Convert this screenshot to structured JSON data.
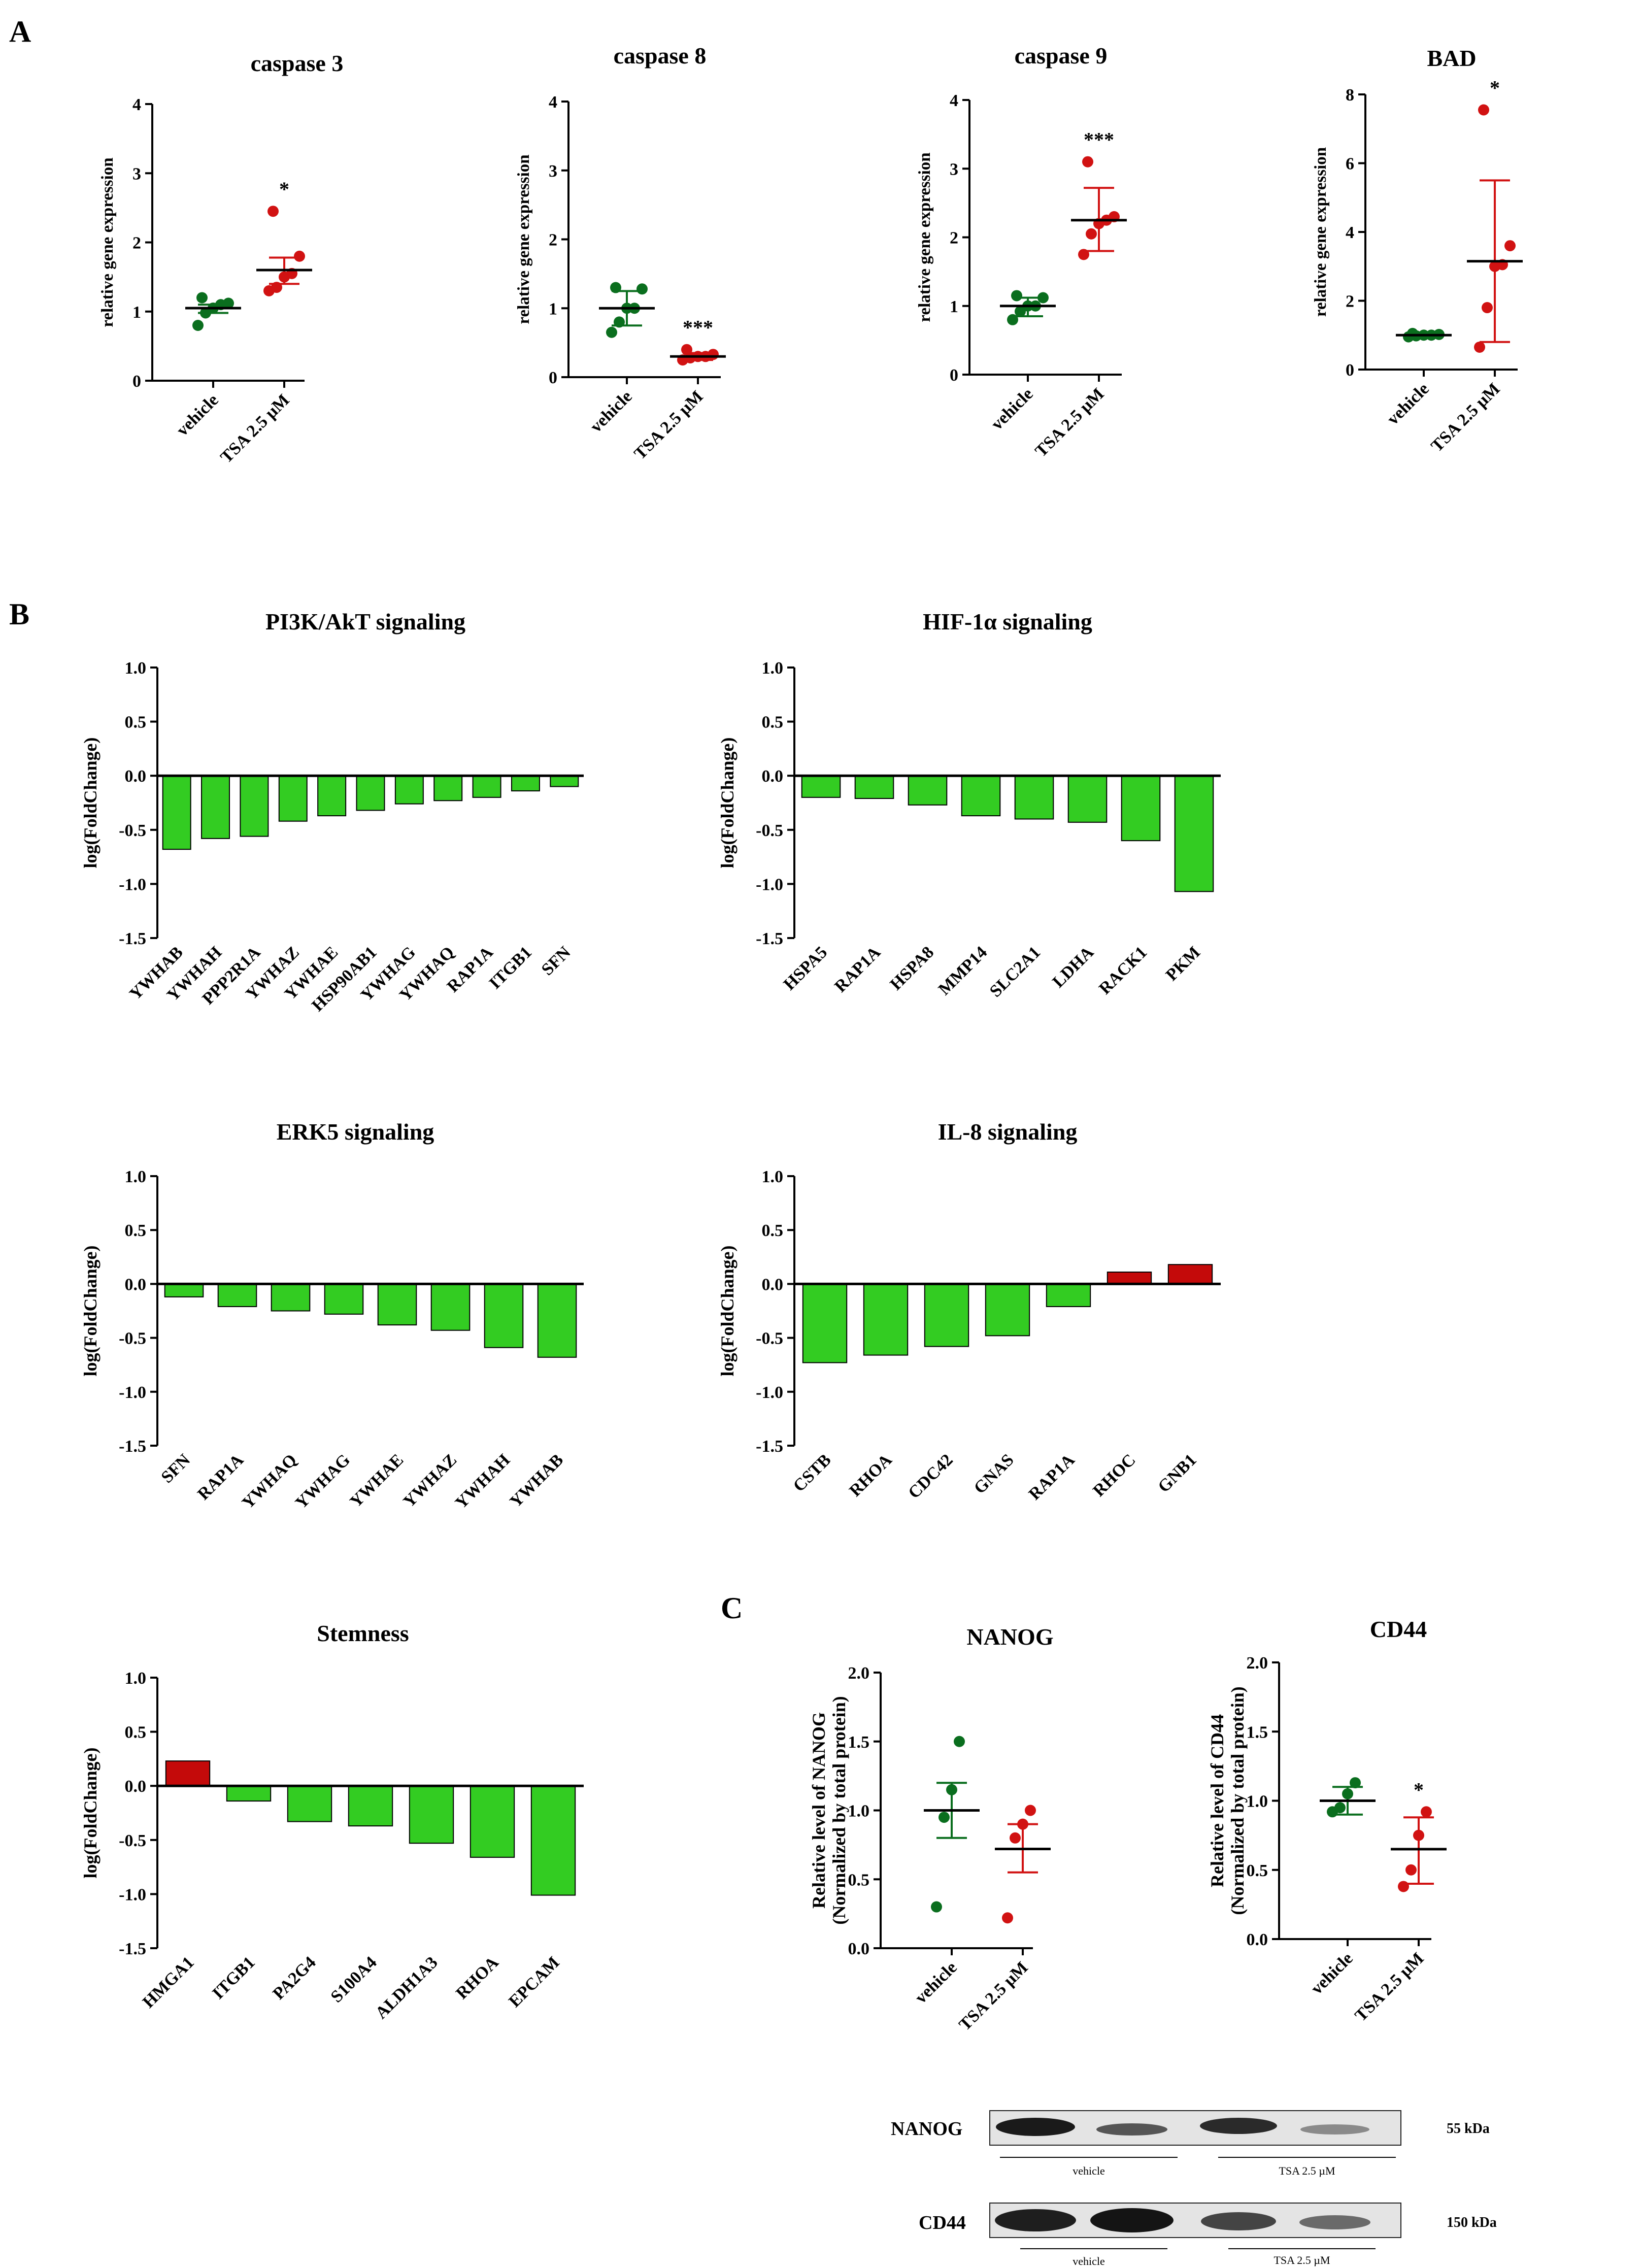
{
  "figure": {
    "panel_labels": [
      "A",
      "B",
      "C"
    ],
    "colors": {
      "vehicle": "#0a6e1e",
      "tsa": "#d11212",
      "bar_down": "#33cc22",
      "bar_up": "#c40a0a",
      "axis": "#000000"
    }
  },
  "chart_data": [
    {
      "id": "casp3",
      "type": "scatter",
      "panel": "A",
      "title": "caspase 3",
      "ylabel": "relative gene expression",
      "xlabel": "",
      "ylim": [
        0,
        4
      ],
      "yticks": [
        0,
        1,
        2,
        3,
        4
      ],
      "categories": [
        "vehicle",
        "TSA 2.5 µM"
      ],
      "groups": [
        {
          "name": "vehicle",
          "values": [
            0.8,
            0.98,
            1.05,
            1.1,
            1.12,
            1.2
          ],
          "mean": 1.05,
          "err": [
            0.98,
            1.1
          ]
        },
        {
          "name": "TSA 2.5 µM",
          "values": [
            1.3,
            1.35,
            1.5,
            1.55,
            1.8,
            2.45
          ],
          "mean": 1.6,
          "err": [
            1.4,
            1.78
          ]
        }
      ],
      "significance": [
        "",
        "*"
      ]
    },
    {
      "id": "casp8",
      "type": "scatter",
      "panel": "A",
      "title": "caspase 8",
      "ylabel": "relative gene expression",
      "xlabel": "",
      "ylim": [
        0,
        4
      ],
      "yticks": [
        0,
        1,
        2,
        3,
        4
      ],
      "categories": [
        "vehicle",
        "TSA 2.5 µM"
      ],
      "groups": [
        {
          "name": "vehicle",
          "values": [
            0.65,
            0.8,
            1.0,
            1.0,
            1.28,
            1.3
          ],
          "mean": 1.0,
          "err": [
            0.75,
            1.25
          ]
        },
        {
          "name": "TSA 2.5 µM",
          "values": [
            0.25,
            0.28,
            0.3,
            0.3,
            0.33,
            0.4
          ],
          "mean": 0.3,
          "err": [
            0.25,
            0.35
          ]
        }
      ],
      "significance": [
        "",
        "***"
      ]
    },
    {
      "id": "casp9",
      "type": "scatter",
      "panel": "A",
      "title": "caspase 9",
      "ylabel": "relative gene expression",
      "xlabel": "",
      "ylim": [
        0,
        4
      ],
      "yticks": [
        0,
        1,
        2,
        3,
        4
      ],
      "categories": [
        "vehicle",
        "TSA 2.5 µM"
      ],
      "groups": [
        {
          "name": "vehicle",
          "values": [
            0.8,
            0.92,
            1.0,
            1.0,
            1.12,
            1.15
          ],
          "mean": 1.0,
          "err": [
            0.85,
            1.12
          ]
        },
        {
          "name": "TSA 2.5 µM",
          "values": [
            1.75,
            2.05,
            2.2,
            2.25,
            2.3,
            3.1
          ],
          "mean": 2.25,
          "err": [
            1.8,
            2.72
          ]
        }
      ],
      "significance": [
        "",
        "***"
      ]
    },
    {
      "id": "bad",
      "type": "scatter",
      "panel": "A",
      "title": "BAD",
      "ylabel": "relative gene expression",
      "xlabel": "",
      "ylim": [
        0,
        8
      ],
      "yticks": [
        0,
        2,
        4,
        6,
        8
      ],
      "categories": [
        "vehicle",
        "TSA 2.5 µM"
      ],
      "groups": [
        {
          "name": "vehicle",
          "values": [
            0.95,
            0.98,
            1.0,
            1.0,
            1.02,
            1.05
          ],
          "mean": 1.0,
          "err": [
            0.95,
            1.05
          ]
        },
        {
          "name": "TSA 2.5 µM",
          "values": [
            0.65,
            1.8,
            3.0,
            3.05,
            3.6,
            7.55
          ],
          "mean": 3.15,
          "err": [
            0.8,
            5.5
          ]
        }
      ],
      "significance": [
        "",
        "*"
      ]
    },
    {
      "id": "pi3k",
      "type": "bar",
      "panel": "B",
      "title": "PI3K/AkT signaling",
      "ylabel": "log(FoldChange)",
      "xlabel": "",
      "ylim": [
        -1.5,
        1.0
      ],
      "yticks": [
        -1.5,
        -1.0,
        -0.5,
        0.0,
        0.5,
        1.0
      ],
      "categories": [
        "YWHAB",
        "YWHAH",
        "PPP2R1A",
        "YWHAZ",
        "YWHAE",
        "HSP90AB1",
        "YWHAG",
        "YWHAQ",
        "RAP1A",
        "ITGB1",
        "SFN"
      ],
      "values": [
        -0.68,
        -0.58,
        -0.56,
        -0.42,
        -0.37,
        -0.32,
        -0.26,
        -0.23,
        -0.2,
        -0.14,
        -0.1
      ]
    },
    {
      "id": "hif",
      "type": "bar",
      "panel": "B",
      "title": "HIF-1α signaling",
      "ylabel": "log(FoldChange)",
      "xlabel": "",
      "ylim": [
        -1.5,
        1.0
      ],
      "yticks": [
        -1.5,
        -1.0,
        -0.5,
        0.0,
        0.5,
        1.0
      ],
      "categories": [
        "HSPA5",
        "RAP1A",
        "HSPA8",
        "MMP14",
        "SLC2A1",
        "LDHA",
        "RACK1",
        "PKM"
      ],
      "values": [
        -0.2,
        -0.21,
        -0.27,
        -0.37,
        -0.4,
        -0.43,
        -0.6,
        -1.07
      ]
    },
    {
      "id": "erk5",
      "type": "bar",
      "panel": "B",
      "title": "ERK5 signaling",
      "ylabel": "log(FoldChange)",
      "xlabel": "",
      "ylim": [
        -1.5,
        1.0
      ],
      "yticks": [
        -1.5,
        -1.0,
        -0.5,
        0.0,
        0.5,
        1.0
      ],
      "categories": [
        "SFN",
        "RAP1A",
        "YWHAQ",
        "YWHAG",
        "YWHAE",
        "YWHAZ",
        "YWHAH",
        "YWHAB"
      ],
      "values": [
        -0.12,
        -0.21,
        -0.25,
        -0.28,
        -0.38,
        -0.43,
        -0.59,
        -0.68
      ]
    },
    {
      "id": "il8",
      "type": "bar",
      "panel": "B",
      "title": "IL-8 signaling",
      "ylabel": "log(FoldChange)",
      "xlabel": "",
      "ylim": [
        -1.5,
        1.0
      ],
      "yticks": [
        -1.5,
        -1.0,
        -0.5,
        0.0,
        0.5,
        1.0
      ],
      "categories": [
        "CSTB",
        "RHOA",
        "CDC42",
        "GNAS",
        "RAP1A",
        "RHOC",
        "GNB1"
      ],
      "values": [
        -0.73,
        -0.66,
        -0.58,
        -0.48,
        -0.21,
        0.11,
        0.18
      ]
    },
    {
      "id": "stem",
      "type": "bar",
      "panel": "B",
      "title": "Stemness",
      "ylabel": "log(FoldChange)",
      "xlabel": "",
      "ylim": [
        -1.5,
        1.0
      ],
      "yticks": [
        -1.5,
        -1.0,
        -0.5,
        0.0,
        0.5,
        1.0
      ],
      "categories": [
        "HMGA1",
        "ITGB1",
        "PA2G4",
        "S100A4",
        "ALDH1A3",
        "RHOA",
        "EPCAM"
      ],
      "values": [
        0.23,
        -0.14,
        -0.33,
        -0.37,
        -0.53,
        -0.66,
        -1.01
      ]
    },
    {
      "id": "nanog",
      "type": "scatter",
      "panel": "C",
      "title": "NANOG",
      "ylabel": "Relative level of NANOG",
      "ylabel2": "(Normalized by total protein)",
      "xlabel": "",
      "ylim": [
        0,
        2
      ],
      "yticks": [
        0.0,
        0.5,
        1.0,
        1.5,
        2.0
      ],
      "categories": [
        "vehicle",
        "TSA 2.5 µM"
      ],
      "groups": [
        {
          "name": "vehicle",
          "values": [
            0.3,
            0.95,
            1.15,
            1.5
          ],
          "mean": 1.0,
          "err": [
            0.8,
            1.2
          ]
        },
        {
          "name": "TSA 2.5 µM",
          "values": [
            0.22,
            0.8,
            0.9,
            1.0
          ],
          "mean": 0.72,
          "err": [
            0.55,
            0.9
          ]
        }
      ],
      "significance": [
        "",
        ""
      ]
    },
    {
      "id": "cd44",
      "type": "scatter",
      "panel": "C",
      "title": "CD44",
      "ylabel": "Relative level of CD44",
      "ylabel2": "(Normalized by total protein)",
      "xlabel": "",
      "ylim": [
        0,
        2
      ],
      "yticks": [
        0.0,
        0.5,
        1.0,
        1.5,
        2.0
      ],
      "categories": [
        "vehicle",
        "TSA 2.5 µM"
      ],
      "groups": [
        {
          "name": "vehicle",
          "values": [
            0.92,
            0.95,
            1.05,
            1.13
          ],
          "mean": 1.0,
          "err": [
            0.9,
            1.1
          ]
        },
        {
          "name": "TSA 2.5 µM",
          "values": [
            0.38,
            0.5,
            0.75,
            0.92
          ],
          "mean": 0.65,
          "err": [
            0.4,
            0.88
          ]
        }
      ],
      "significance": [
        "",
        "*"
      ]
    }
  ],
  "blot": {
    "rows": [
      {
        "label": "NANOG",
        "kda": "55 kDa",
        "groups": [
          "vehicle",
          "TSA 2.5 µM"
        ]
      },
      {
        "label": "CD44",
        "kda": "150 kDa",
        "groups": [
          "vehicle",
          "TSA 2.5 µM"
        ]
      }
    ]
  }
}
